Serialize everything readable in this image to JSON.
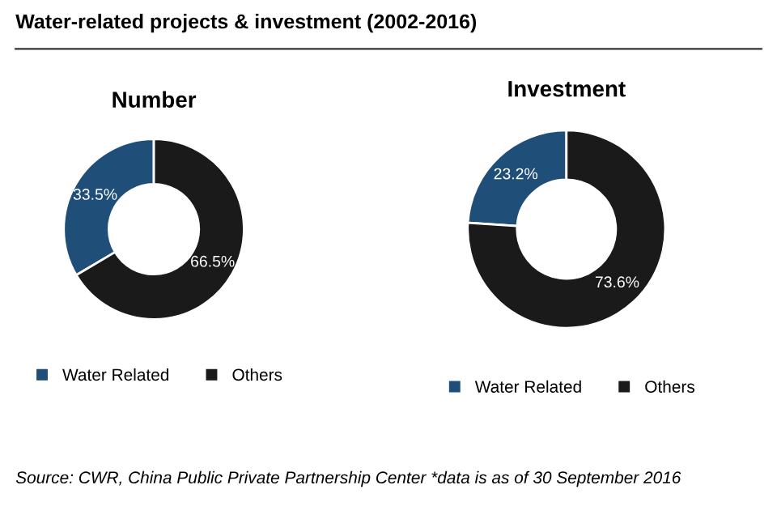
{
  "chart_data": [
    {
      "type": "donut",
      "title": "Number",
      "categories": [
        "Water Related",
        "Others"
      ],
      "values": [
        33.5,
        66.5
      ],
      "value_labels": [
        "33.5%",
        "66.5%"
      ],
      "colors": [
        "#1f4e79",
        "#1a1a1a"
      ],
      "legend": "bottom",
      "annotations": [
        "Water-related projects & investment (2002-2016)",
        "Source: CWR, China Public Private Partnership Center *data is as of 30 September 2016"
      ]
    },
    {
      "type": "donut",
      "title": "Investment",
      "categories": [
        "Water Related",
        "Others"
      ],
      "values": [
        23.2,
        73.6
      ],
      "value_labels": [
        "23.2%",
        "73.6%"
      ],
      "colors": [
        "#1f4e79",
        "#1a1a1a"
      ],
      "legend": "bottom"
    }
  ]
}
